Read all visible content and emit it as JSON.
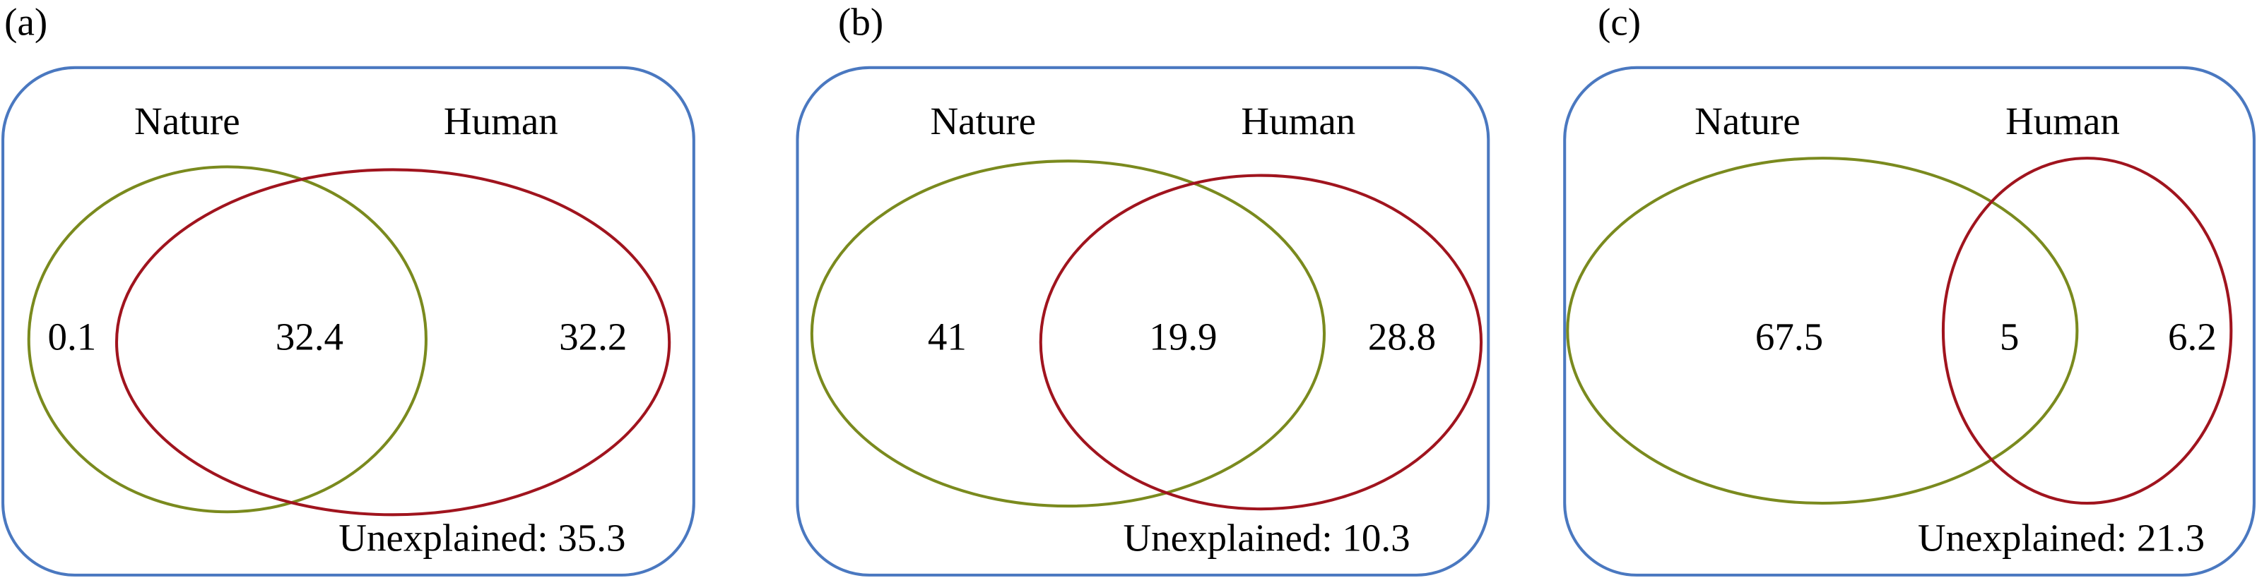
{
  "panels": [
    {
      "label": "(a)",
      "sets": [
        "Nature",
        "Human"
      ],
      "regions": [
        0.1,
        32.4,
        32.2
      ],
      "unexplained": "Unexplained: 35.3"
    },
    {
      "label": "(b)",
      "sets": [
        "Nature",
        "Human"
      ],
      "regions": [
        41,
        19.9,
        28.8
      ],
      "unexplained": "Unexplained: 10.3"
    },
    {
      "label": "(c)",
      "sets": [
        "Nature",
        "Human"
      ],
      "regions": [
        67.5,
        5,
        6.2
      ],
      "unexplained": "Unexplained: 21.3"
    }
  ]
}
